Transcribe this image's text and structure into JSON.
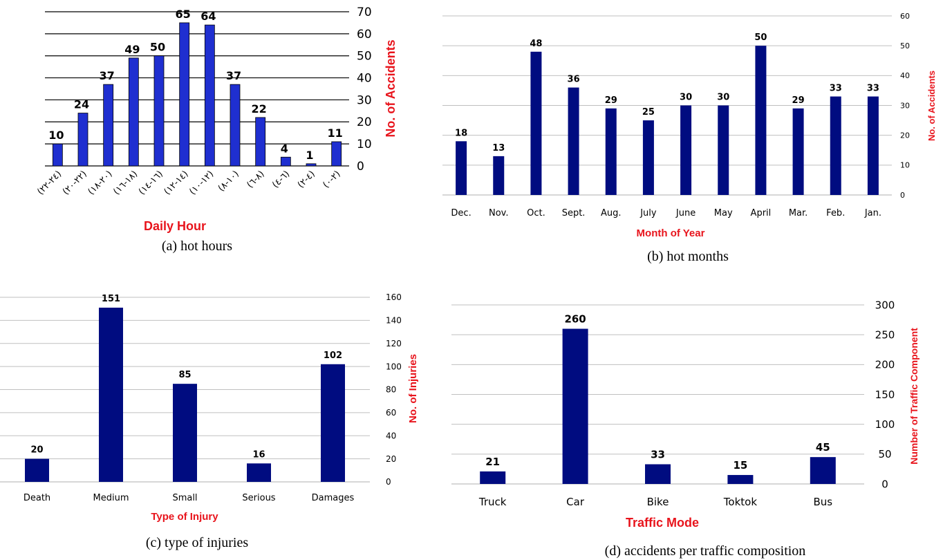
{
  "chart_data": [
    {
      "type": "bar",
      "caption": "(a) hot hours",
      "xlabel": "Daily Hour",
      "ylabel": "No. of Accidents",
      "ylim": [
        0,
        70
      ],
      "yticks": [
        "0",
        "10",
        "20",
        "30",
        "40",
        "50",
        "60",
        "70"
      ],
      "categories": [
        "(٢٤-٢٢)",
        "(٢٢-٢٠)",
        "(٢٠-١٨)",
        "(١٨-١٦)",
        "(١٦-١٤)",
        "(١٤-١٢)",
        "(١٢-١٠)",
        "(١٠-٨)",
        "(٨-٦)",
        "(٦-٤)",
        "(٤-٢)",
        "(٢-٠)"
      ],
      "values": [
        10,
        24,
        37,
        49,
        50,
        65,
        64,
        37,
        22,
        4,
        1,
        11
      ],
      "bar_color": "#1f2fd0",
      "grid": true
    },
    {
      "type": "bar",
      "caption": "(b) hot months",
      "xlabel": "Month of Year",
      "ylabel": "No. of Accidents",
      "ylim": [
        0,
        60
      ],
      "yticks": [
        "0",
        "10",
        "20",
        "30",
        "40",
        "50",
        "60"
      ],
      "categories": [
        "Dec.",
        "Nov.",
        "Oct.",
        "Sept.",
        "Aug.",
        "July",
        "June",
        "May",
        "April",
        "Mar.",
        "Feb.",
        "Jan."
      ],
      "values": [
        18,
        13,
        48,
        36,
        29,
        25,
        30,
        30,
        50,
        29,
        33,
        33
      ],
      "bar_color": "#000c80",
      "grid": true
    },
    {
      "type": "bar",
      "caption": "(c) type of injuries",
      "xlabel": "Type of Injury",
      "ylabel": "No. of Injuries",
      "ylim": [
        0,
        160
      ],
      "yticks": [
        "0",
        "20",
        "40",
        "60",
        "80",
        "100",
        "120",
        "140",
        "160"
      ],
      "categories": [
        "Death",
        "Medium",
        "Small",
        "Serious",
        "Damages"
      ],
      "values": [
        20,
        151,
        85,
        16,
        102
      ],
      "bar_color": "#000c80",
      "grid": true
    },
    {
      "type": "bar",
      "caption": "(d) accidents per traffic composition",
      "xlabel": "Traffic Mode",
      "ylabel": "Number of Traffic Component",
      "ylim": [
        0,
        300
      ],
      "yticks": [
        "0",
        "50",
        "100",
        "150",
        "200",
        "250",
        "300"
      ],
      "categories": [
        "Truck",
        "Car",
        "Bike",
        "Toktok",
        "Bus"
      ],
      "values": [
        21,
        260,
        33,
        15,
        45
      ],
      "bar_color": "#000c80",
      "grid": true
    }
  ]
}
